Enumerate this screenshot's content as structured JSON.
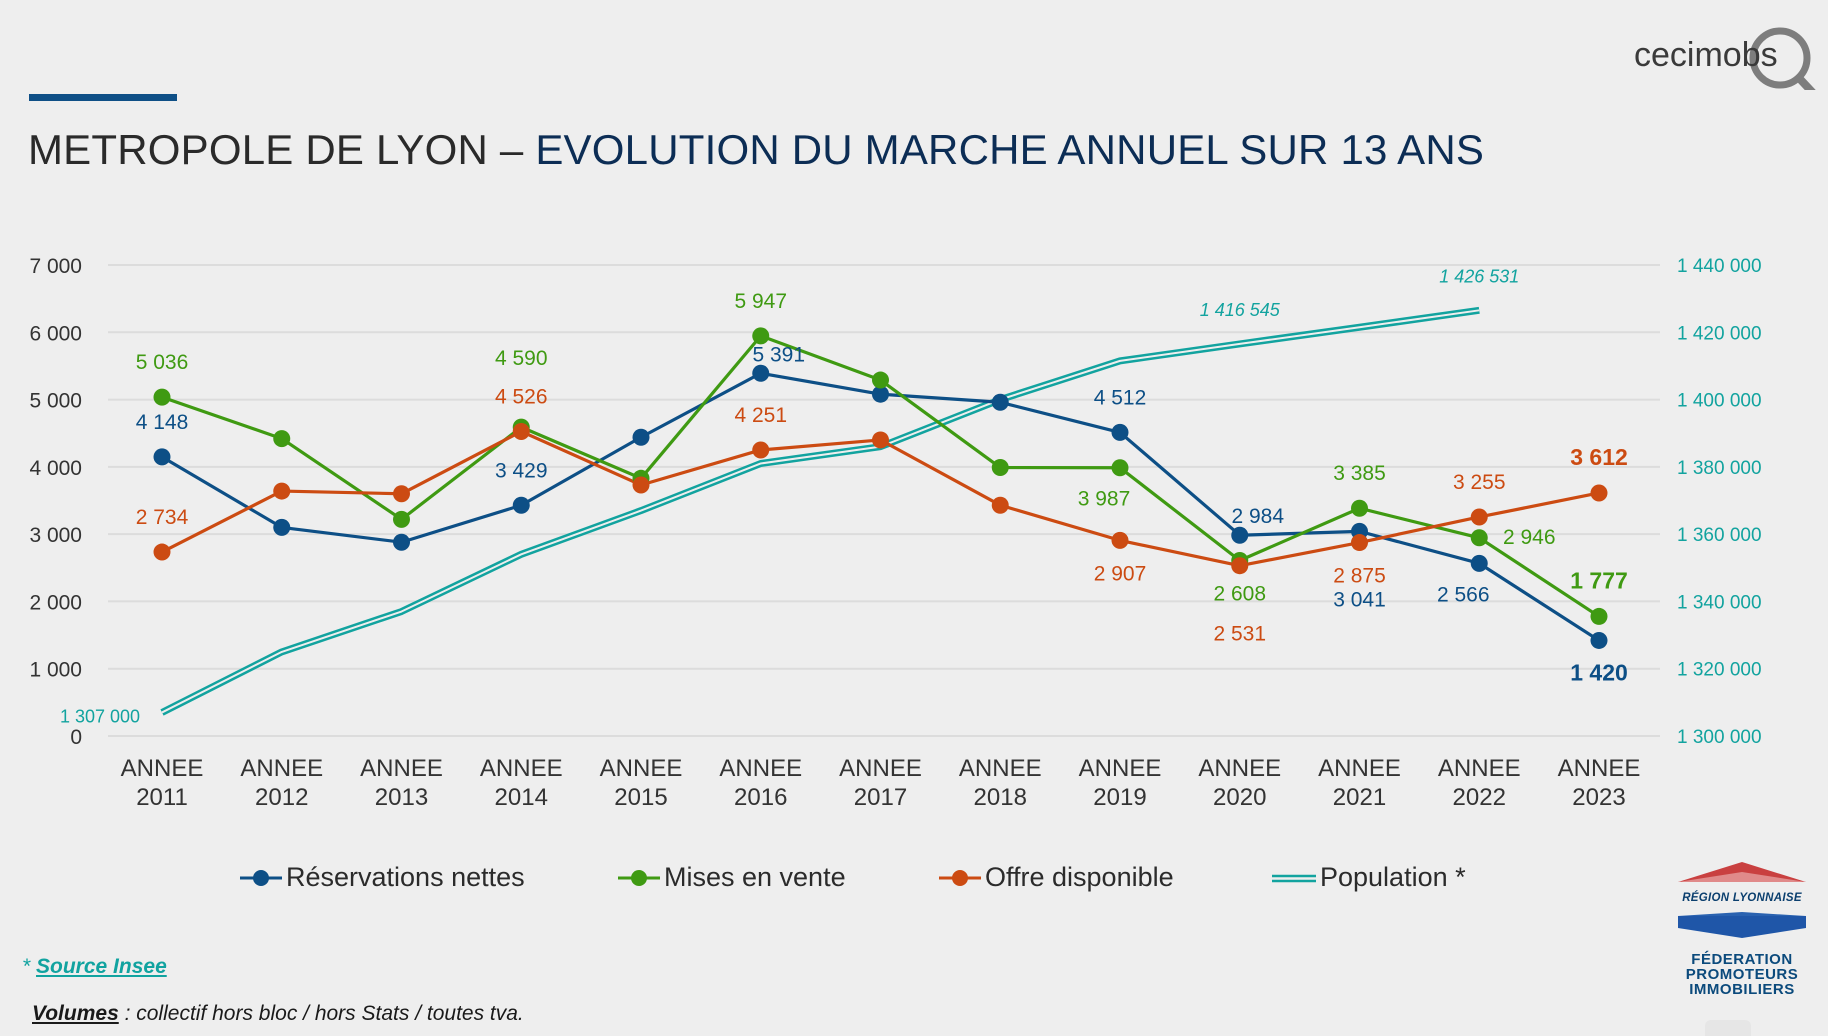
{
  "header": {
    "title_part1": "METROPOLE DE LYON – ",
    "title_part2": "EVOLUTION DU MARCHE ANNUEL SUR 13 ANS",
    "logo_text": "cecimobs"
  },
  "colors": {
    "reservations": "#0d4f86",
    "mises_en_vente": "#3f9a12",
    "offre": "#cc4b12",
    "population": "#12a39f",
    "accent": "#0e4f86",
    "title_dark": "#0c2d55"
  },
  "chart_data": {
    "type": "line",
    "title": "METROPOLE DE LYON – EVOLUTION DU MARCHE ANNUEL SUR 13 ANS",
    "categories": [
      [
        "ANNEE",
        "2011"
      ],
      [
        "ANNEE",
        "2012"
      ],
      [
        "ANNEE",
        "2013"
      ],
      [
        "ANNEE",
        "2014"
      ],
      [
        "ANNEE",
        "2015"
      ],
      [
        "ANNEE",
        "2016"
      ],
      [
        "ANNEE",
        "2017"
      ],
      [
        "ANNEE",
        "2018"
      ],
      [
        "ANNEE",
        "2019"
      ],
      [
        "ANNEE",
        "2020"
      ],
      [
        "ANNEE",
        "2021"
      ],
      [
        "ANNEE",
        "2022"
      ],
      [
        "ANNEE",
        "2023"
      ]
    ],
    "y_left": {
      "min": 0,
      "max": 7000,
      "step": 1000,
      "ticks": [
        "0",
        "1 000",
        "2 000",
        "3 000",
        "4 000",
        "5 000",
        "6 000",
        "7 000"
      ]
    },
    "y_right": {
      "min": 1300000,
      "max": 1440000,
      "step": 20000,
      "ticks": [
        "1 300 000",
        "1 320 000",
        "1 340 000",
        "1 360 000",
        "1 380 000",
        "1 400 000",
        "1 420 000",
        "1 440 000"
      ]
    },
    "grid": true,
    "legend_position": "bottom",
    "series": [
      {
        "name": "Réservations nettes",
        "key": "reservations",
        "axis": "left",
        "marker": "circle",
        "values": [
          4148,
          3100,
          2880,
          3429,
          4440,
          5391,
          5080,
          4960,
          4512,
          2984,
          3041,
          2566,
          1420
        ],
        "labels": [
          {
            "i": 0,
            "text": "4 148",
            "pos": "above"
          },
          {
            "i": 3,
            "text": "3 429",
            "pos": "above"
          },
          {
            "i": 5,
            "text": "5 391",
            "pos": "above-right"
          },
          {
            "i": 8,
            "text": "4 512",
            "pos": "above"
          },
          {
            "i": 9,
            "text": "2 984",
            "pos": "above-right"
          },
          {
            "i": 10,
            "text": "3 041",
            "pos": "below-far"
          },
          {
            "i": 11,
            "text": "2 566",
            "pos": "below-left"
          },
          {
            "i": 12,
            "text": "1 420",
            "pos": "below",
            "bold": true
          }
        ]
      },
      {
        "name": "Mises en vente",
        "key": "mises_en_vente",
        "axis": "left",
        "marker": "circle",
        "values": [
          5036,
          4420,
          3220,
          4590,
          3830,
          5947,
          5290,
          3990,
          3987,
          2608,
          3385,
          2946,
          1777
        ],
        "labels": [
          {
            "i": 0,
            "text": "5 036",
            "pos": "above"
          },
          {
            "i": 3,
            "text": "4 590",
            "pos": "above-far"
          },
          {
            "i": 5,
            "text": "5 947",
            "pos": "above"
          },
          {
            "i": 8,
            "text": "3 987",
            "pos": "below-left"
          },
          {
            "i": 9,
            "text": "2 608",
            "pos": "below"
          },
          {
            "i": 10,
            "text": "3 385",
            "pos": "above"
          },
          {
            "i": 11,
            "text": "2 946",
            "pos": "right"
          },
          {
            "i": 12,
            "text": "1 777",
            "pos": "above",
            "bold": true
          }
        ]
      },
      {
        "name": "Offre disponible",
        "key": "offre",
        "axis": "left",
        "marker": "circle",
        "values": [
          2734,
          3640,
          3600,
          4526,
          3730,
          4251,
          4400,
          3430,
          2907,
          2531,
          2875,
          3255,
          3612
        ],
        "labels": [
          {
            "i": 0,
            "text": "2 734",
            "pos": "above"
          },
          {
            "i": 3,
            "text": "4 526",
            "pos": "above"
          },
          {
            "i": 5,
            "text": "4 251",
            "pos": "above"
          },
          {
            "i": 8,
            "text": "2 907",
            "pos": "below"
          },
          {
            "i": 9,
            "text": "2 531",
            "pos": "below-far"
          },
          {
            "i": 10,
            "text": "2 875",
            "pos": "below"
          },
          {
            "i": 11,
            "text": "3 255",
            "pos": "above"
          },
          {
            "i": 12,
            "text": "3 612",
            "pos": "above",
            "bold": true
          }
        ]
      },
      {
        "name": "Population *",
        "key": "population",
        "axis": "right",
        "marker": "none",
        "style": "double-line",
        "values": [
          1307000,
          1325000,
          1337000,
          1354000,
          1367000,
          1381000,
          1386000,
          1400000,
          1411500,
          1416545,
          1421500,
          1426531,
          null
        ],
        "labels": [
          {
            "i": 0,
            "text": "1 307 000",
            "pos": "left"
          },
          {
            "i": 9,
            "text": "1 416 545",
            "pos": "above",
            "italic": true
          },
          {
            "i": 11,
            "text": "1 426 531",
            "pos": "above",
            "italic": true
          }
        ]
      }
    ]
  },
  "legend": [
    {
      "label": "Réservations nettes",
      "key": "reservations"
    },
    {
      "label": "Mises en vente",
      "key": "mises_en_vente"
    },
    {
      "label": "Offre disponible",
      "key": "offre"
    },
    {
      "label": "Population *",
      "key": "population"
    }
  ],
  "footer": {
    "source_prefix": "* ",
    "source_link": "Source Insee",
    "volumes_label": "Volumes",
    "volumes_text": " : collectif hors bloc / hors Stats / toutes tva."
  },
  "fpi_logo": {
    "region": "RÉGION LYONNAISE",
    "line1": "FÉDERATION",
    "line2": "PROMOTEURS",
    "line3": "IMMOBILIERS"
  }
}
